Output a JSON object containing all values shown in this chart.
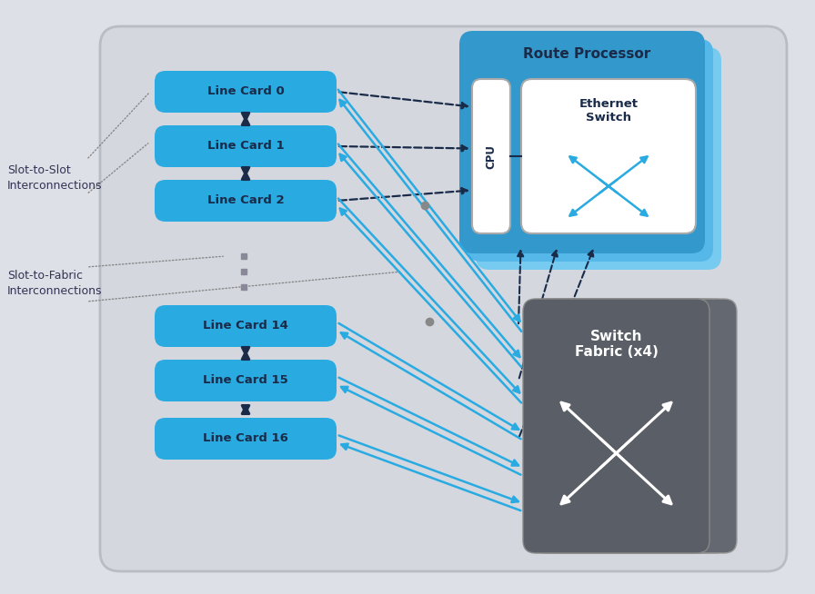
{
  "bg_color": "#dde0e6",
  "panel_color": "#d4d7de",
  "cyan_color": "#29abe2",
  "dark_navy": "#1a2b4a",
  "white_color": "#ffffff",
  "lc_cyan": "#29abe2",
  "rp_blue_main": "#3399cc",
  "rp_blue_light": "#55b8e8",
  "rp_blue_lighter": "#77caf0",
  "sf_gray_main": "#5a5e66",
  "sf_gray_light": "#6e7278",
  "sf_gray_lighter": "#828690",
  "dot_gray": "#888888",
  "label_gray": "#555566",
  "line_cards_top": [
    "Line Card 0",
    "Line Card 1",
    "Line Card 2"
  ],
  "line_cards_bot": [
    "Line Card 14",
    "Line Card 15",
    "Line Card 16"
  ],
  "rp_title": "Route Processor",
  "cpu_label": "CPU",
  "eth_label": "Ethernet\nSwitch",
  "sf_label": "Switch\nFabric (x4)",
  "slot_slot_label": "Slot-to-Slot\nInterconnections",
  "slot_fabric_label": "Slot-to-Fabric\nInterconnections"
}
